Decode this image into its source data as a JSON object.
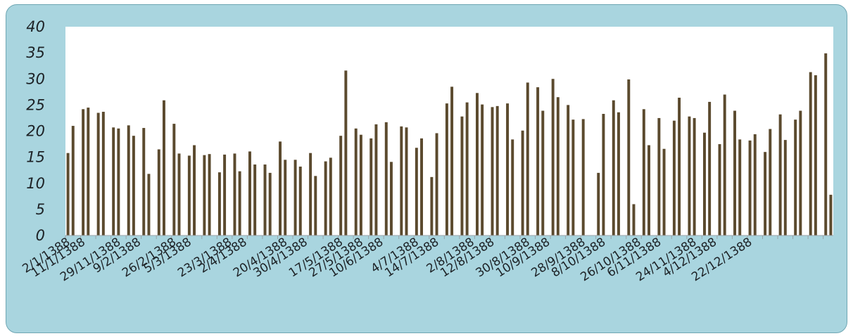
{
  "chart_data": {
    "type": "bar",
    "title": "",
    "xlabel": "",
    "ylabel": "",
    "ylim": [
      0,
      40
    ],
    "yticks": [
      0,
      5,
      10,
      15,
      20,
      25,
      30,
      35,
      40
    ],
    "grid": false,
    "legend": "none",
    "bar_color": "#5b4a2e",
    "plot_background": "#ffffff",
    "frame_background": "#a9d5df",
    "tick_labels": [
      {
        "label": "2/1/1388",
        "index": 0
      },
      {
        "label": "11/1/1388",
        "index": 3
      },
      {
        "label": "29/11/1388",
        "index": 10
      },
      {
        "label": "9/2/1388",
        "index": 14
      },
      {
        "label": "26/2/1388",
        "index": 21
      },
      {
        "label": "5/3/1388",
        "index": 24
      },
      {
        "label": "23/3/1388",
        "index": 32
      },
      {
        "label": "2/4/1388",
        "index": 35
      },
      {
        "label": "20/4/1388",
        "index": 43
      },
      {
        "label": "30/4/1388",
        "index": 47
      },
      {
        "label": "17/5/1388",
        "index": 54
      },
      {
        "label": "27/5/1388",
        "index": 58
      },
      {
        "label": "10/6/1388",
        "index": 62
      },
      {
        "label": "4/7/1388",
        "index": 69
      },
      {
        "label": "14/7/1388",
        "index": 73
      },
      {
        "label": "2/8/1388",
        "index": 80
      },
      {
        "label": "12/8/1388",
        "index": 84
      },
      {
        "label": "30/8/1388",
        "index": 91
      },
      {
        "label": "10/9/1388",
        "index": 95
      },
      {
        "label": "28/9/1388",
        "index": 102
      },
      {
        "label": "8/10/1388",
        "index": 106
      },
      {
        "label": "26/10/1388",
        "index": 113
      },
      {
        "label": "6/11/1388",
        "index": 117
      },
      {
        "label": "24/11/1388",
        "index": 124
      },
      {
        "label": "4/12/1388",
        "index": 128
      },
      {
        "label": "22/12/1388",
        "index": 135
      }
    ],
    "values": [
      15.8,
      21.0,
      null,
      24.2,
      24.5,
      null,
      23.5,
      23.7,
      null,
      20.7,
      20.5,
      null,
      21.1,
      19.1,
      null,
      20.6,
      11.8,
      null,
      16.5,
      25.9,
      null,
      21.4,
      15.7,
      null,
      15.3,
      17.3,
      null,
      15.4,
      15.6,
      null,
      12.1,
      15.5,
      null,
      15.7,
      12.3,
      null,
      16.1,
      13.6,
      null,
      13.6,
      12.0,
      null,
      18.0,
      14.5,
      null,
      14.5,
      13.2,
      null,
      15.8,
      11.4,
      null,
      14.2,
      14.9,
      null,
      19.1,
      31.6,
      null,
      20.5,
      19.3,
      null,
      18.6,
      21.3,
      null,
      21.7,
      14.1,
      null,
      20.9,
      20.7,
      null,
      16.8,
      18.6,
      null,
      11.2,
      19.6,
      null,
      25.3,
      28.5,
      null,
      22.8,
      25.5,
      null,
      27.3,
      25.1,
      null,
      24.6,
      24.8,
      null,
      25.3,
      18.4,
      null,
      20.1,
      29.3,
      null,
      28.4,
      23.9,
      null,
      30.0,
      26.5,
      null,
      25.0,
      22.2,
      null,
      22.3,
      null,
      null,
      12.0,
      23.3,
      null,
      25.9,
      23.6,
      null,
      29.9,
      6.0,
      null,
      24.2,
      17.3,
      null,
      22.5,
      16.6,
      null,
      22.0,
      26.4,
      null,
      22.8,
      22.5,
      null,
      19.7,
      25.6,
      null,
      17.5,
      27.0,
      null,
      23.9,
      18.4,
      null,
      18.2,
      19.4,
      null,
      16.0,
      20.4,
      null,
      23.2,
      18.3,
      null,
      22.2,
      23.9,
      null,
      31.3,
      30.7,
      null,
      34.9,
      7.8
    ]
  }
}
